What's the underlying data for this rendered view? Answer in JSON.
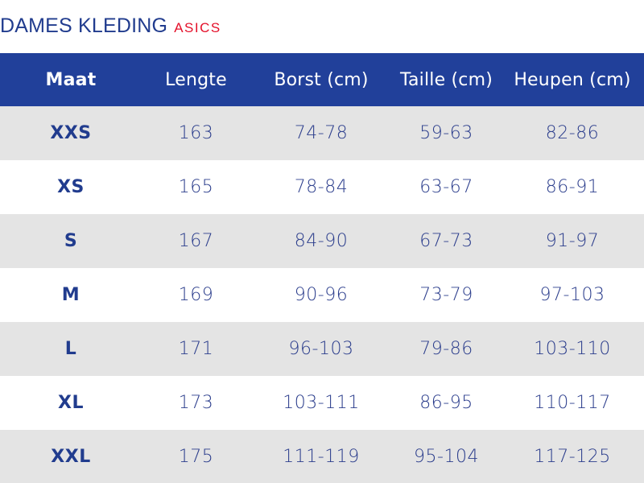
{
  "title": {
    "main": "DAMES KLEDING",
    "brand": "ASICS"
  },
  "colors": {
    "header_bg": "#21409a",
    "title_blue": "#213c8e",
    "brand_red": "#e4102a",
    "row_shade": "#e4e4e4"
  },
  "table": {
    "headers": [
      "Maat",
      "Lengte",
      "Borst (cm)",
      "Taille (cm)",
      "Heupen (cm)"
    ],
    "rows": [
      [
        "XXS",
        "163",
        "74-78",
        "59-63",
        "82-86"
      ],
      [
        "XS",
        "165",
        "78-84",
        "63-67",
        "86-91"
      ],
      [
        "S",
        "167",
        "84-90",
        "67-73",
        "91-97"
      ],
      [
        "M",
        "169",
        "90-96",
        "73-79",
        "97-103"
      ],
      [
        "L",
        "171",
        "96-103",
        "79-86",
        "103-110"
      ],
      [
        "XL",
        "173",
        "103-111",
        "86-95",
        "110-117"
      ],
      [
        "XXL",
        "175",
        "111-119",
        "95-104",
        "117-125"
      ]
    ]
  }
}
